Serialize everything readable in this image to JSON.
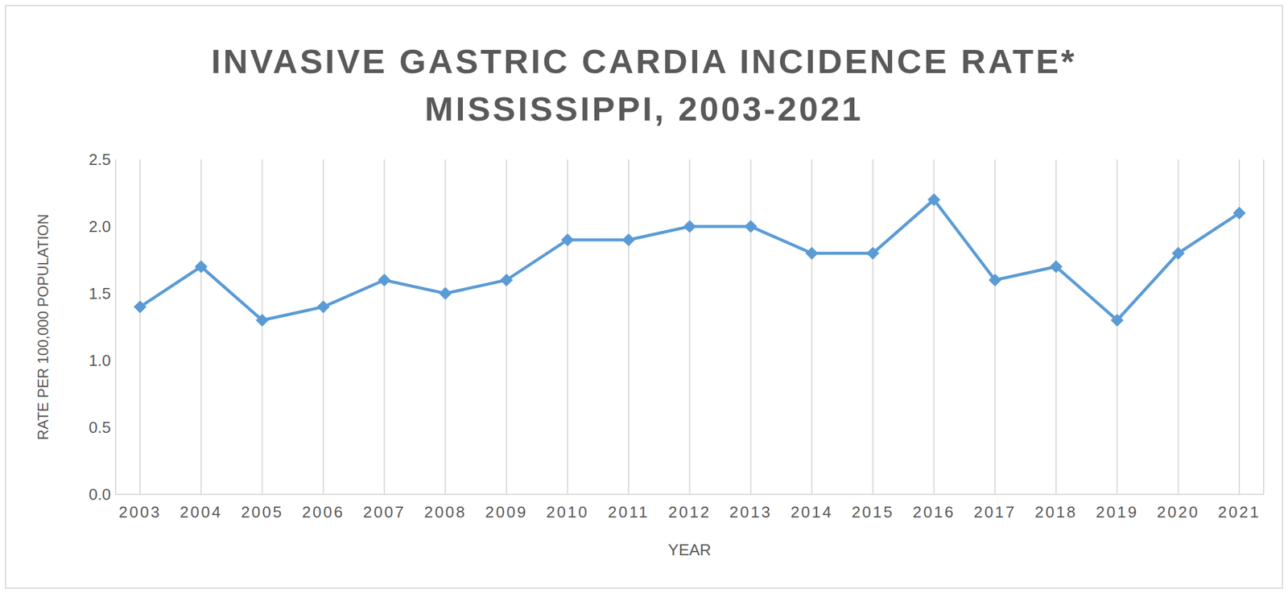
{
  "chart_data": {
    "type": "line",
    "title": "INVASIVE GASTRIC CARDIA INCIDENCE RATE*",
    "subtitle": "MISSISSIPPI, 2003-2021",
    "x_label": "YEAR",
    "y_label": "RATE PER 100,000 POPULATION",
    "categories": [
      "2003",
      "2004",
      "2005",
      "2006",
      "2007",
      "2008",
      "2009",
      "2010",
      "2011",
      "2012",
      "2013",
      "2014",
      "2015",
      "2016",
      "2017",
      "2018",
      "2019",
      "2020",
      "2021"
    ],
    "values": [
      1.4,
      1.7,
      1.3,
      1.4,
      1.6,
      1.5,
      1.6,
      1.9,
      1.9,
      2.0,
      2.0,
      1.8,
      1.8,
      2.2,
      1.6,
      1.7,
      1.3,
      1.8,
      2.1
    ],
    "color": "#5b9bd5",
    "marker": "diamond",
    "ylim": [
      0,
      2.5
    ],
    "yticks": [
      {
        "value": 0,
        "label": "0.0"
      },
      0.5,
      {
        "value": 1,
        "label": "1.0"
      },
      1.5,
      {
        "value": 2,
        "label": "2.0"
      },
      2.5
    ],
    "grid": true
  }
}
